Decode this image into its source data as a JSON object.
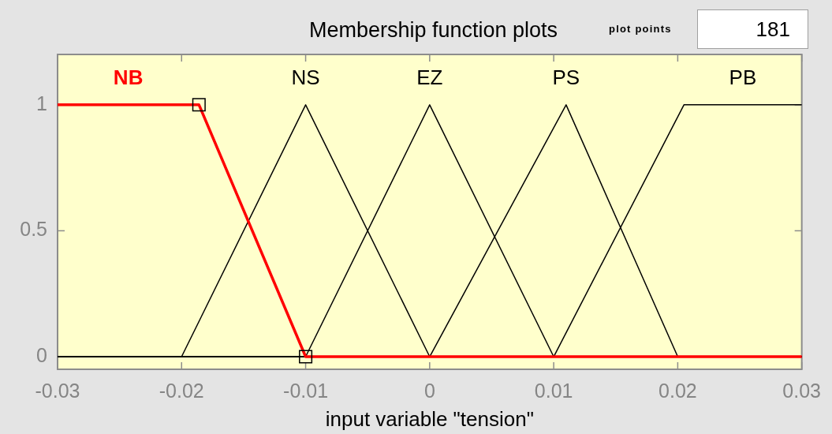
{
  "chart_data": {
    "type": "line",
    "title": "Membership function plots",
    "xlabel": "input variable \"tension\"",
    "annotations": [
      "plot points",
      "181"
    ],
    "series": [
      {
        "name": "NB",
        "color": "#ff0000",
        "x": [
          -0.03,
          -0.0186,
          -0.01,
          0.03
        ],
        "values": [
          1,
          1,
          0,
          0
        ]
      },
      {
        "name": "NS",
        "color": "#000000",
        "x": [
          -0.03,
          -0.02,
          -0.01,
          0,
          0.03
        ],
        "values": [
          0,
          0,
          1,
          0,
          0
        ]
      },
      {
        "name": "EZ",
        "color": "#000000",
        "x": [
          -0.03,
          -0.01,
          0,
          0.01,
          0.03
        ],
        "values": [
          0,
          0,
          1,
          0,
          0
        ]
      },
      {
        "name": "PS",
        "color": "#000000",
        "x": [
          -0.03,
          0,
          0.011,
          0.02,
          0.03
        ],
        "values": [
          0,
          0,
          1,
          0,
          0
        ]
      },
      {
        "name": "PB",
        "color": "#000000",
        "x": [
          -0.03,
          0.01,
          0.0205,
          0.03
        ],
        "values": [
          0,
          0,
          1,
          1
        ]
      },
      {
        "type": "scatter",
        "color": "#000000",
        "marker": "square",
        "x": [
          -0.0186,
          -0.01
        ],
        "values": [
          1,
          0
        ]
      }
    ],
    "xlim": [
      -0.03,
      0.03
    ],
    "xticks": [
      -0.03,
      -0.02,
      -0.01,
      0,
      0.01,
      0.02,
      0.03
    ],
    "ylim": [
      -0.05,
      1.2
    ],
    "yticks": [
      0,
      0.5,
      1
    ],
    "grid": false,
    "legend": false,
    "marker": "none",
    "line_style": "solid"
  }
}
